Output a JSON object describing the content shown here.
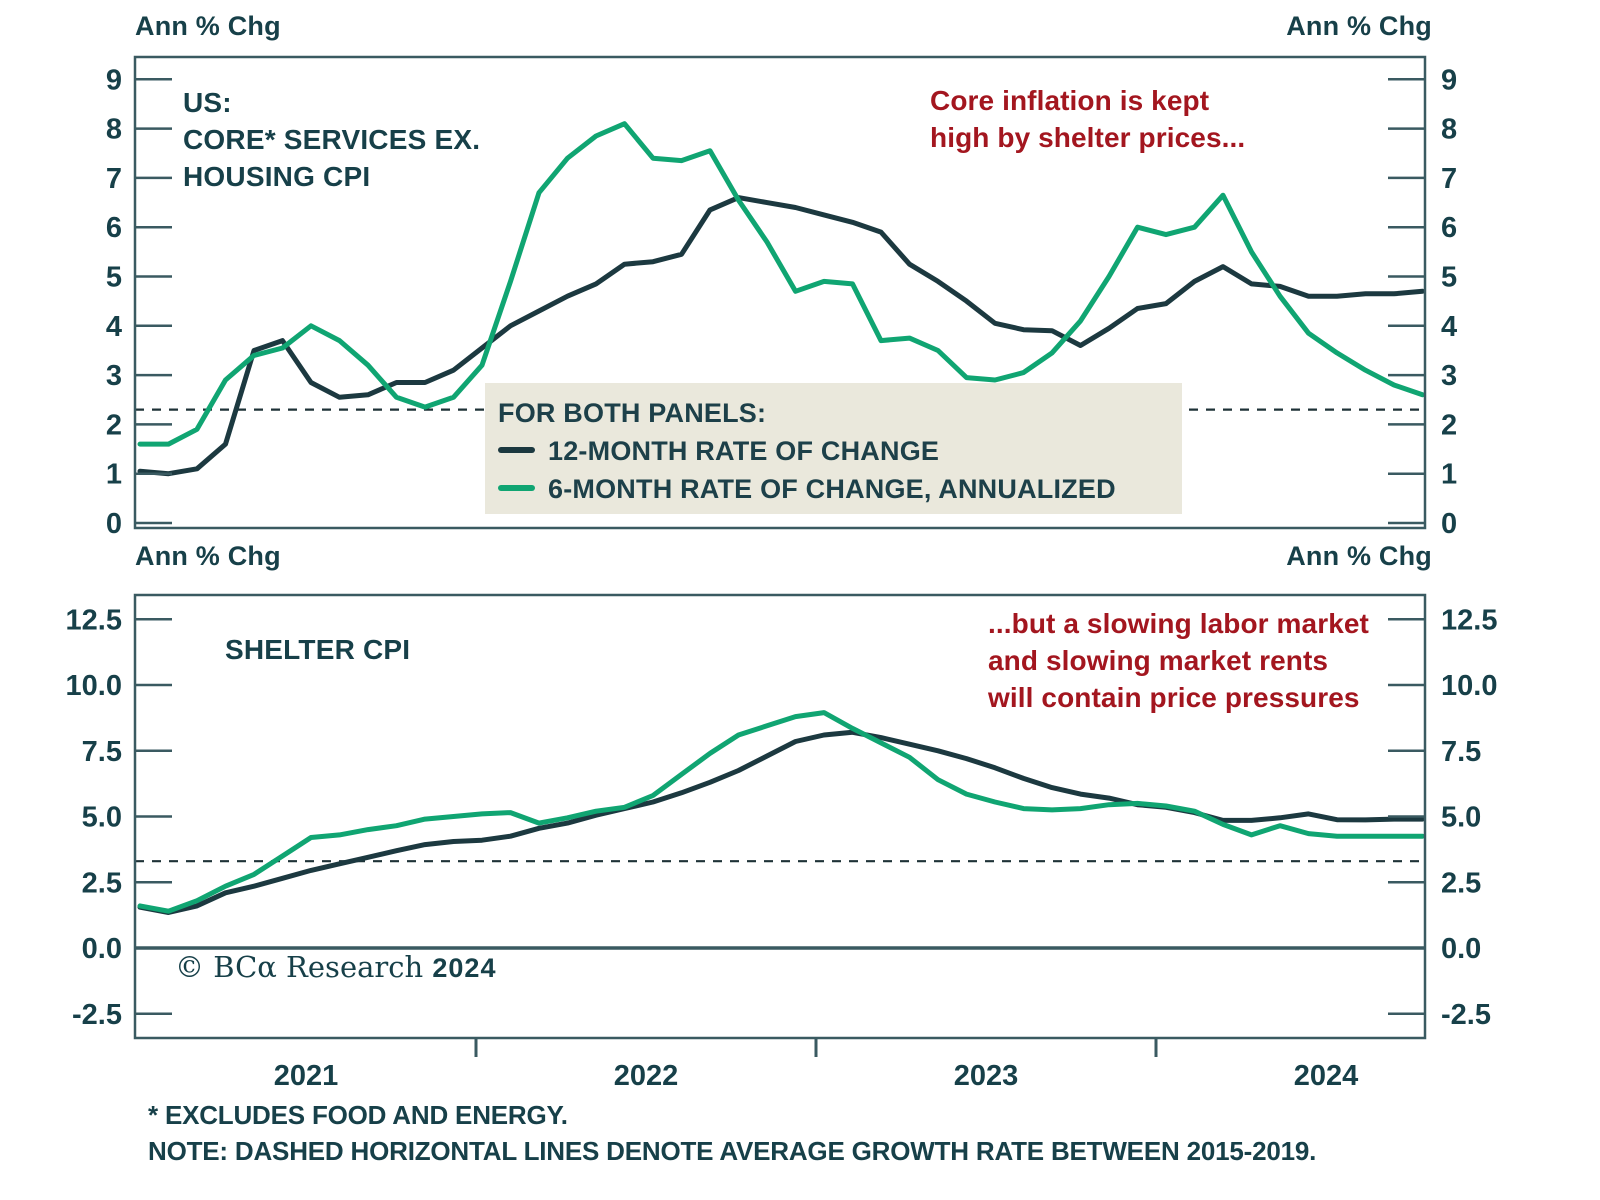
{
  "colors": {
    "text": "#174049",
    "red_annotation": "#a3161f",
    "line_12m": "#1c3940",
    "line_6m": "#10a572",
    "axis": "#3a5a61",
    "dashed": "#1e3237",
    "legend_bg": "#eae8dc",
    "background": "#ffffff"
  },
  "axis_corner_labels": {
    "top_left": "Ann % Chg",
    "top_right": "Ann % Chg",
    "mid_left": "Ann % Chg",
    "mid_right": "Ann % Chg"
  },
  "panels": [
    {
      "title_lines": [
        "US:",
        "CORE* SERVICES EX.",
        "HOUSING CPI"
      ],
      "annotation_lines": [
        "Core inflation is kept",
        "high by shelter prices..."
      ]
    },
    {
      "title_lines": [
        "SHELTER CPI"
      ],
      "annotation_lines": [
        "...but a slowing labor market",
        "and slowing market rents",
        "will contain price pressures"
      ]
    }
  ],
  "legend": {
    "title": "FOR BOTH PANELS:",
    "items": [
      {
        "label": "12-MONTH RATE OF CHANGE"
      },
      {
        "label": "6-MONTH RATE OF CHANGE, ANNUALIZED"
      }
    ]
  },
  "copyright": {
    "symbol_text": "© BCα Research",
    "year": "2024"
  },
  "x_axis": {
    "year_labels": [
      "2021",
      "2022",
      "2023",
      "2024"
    ]
  },
  "footnotes": [
    "* EXCLUDES FOOD AND ENERGY.",
    "NOTE: DASHED HORIZONTAL LINES DENOTE AVERAGE GROWTH RATE BETWEEN 2015-2019."
  ],
  "chart_data": [
    {
      "type": "line",
      "title": "US: CORE* SERVICES EX. HOUSING CPI",
      "ylabel": "Ann % Chg",
      "ylim": [
        0,
        9.45
      ],
      "ytick_values": [
        0,
        1,
        2,
        3,
        4,
        5,
        6,
        7,
        8,
        9
      ],
      "ytick_labels": [
        "0",
        "1",
        "2",
        "3",
        "4",
        "5",
        "6",
        "7",
        "8",
        "9"
      ],
      "x_range": "monthly, Jan 2021 - Oct 2024",
      "x_year_labels": [
        "2021",
        "2022",
        "2023",
        "2024"
      ],
      "grid": false,
      "zero_line": false,
      "dashed_avg_2015_2019": 2.3,
      "annotation": "Core inflation is kept high by shelter prices...",
      "series": [
        {
          "name": "12-MONTH RATE OF CHANGE",
          "color": "#1c3940",
          "values": [
            1.05,
            1.0,
            1.1,
            1.6,
            3.5,
            3.7,
            2.85,
            2.55,
            2.6,
            2.85,
            2.85,
            3.1,
            3.55,
            4.0,
            4.3,
            4.6,
            4.85,
            5.25,
            5.3,
            5.45,
            6.35,
            6.6,
            6.5,
            6.4,
            6.25,
            6.1,
            5.9,
            5.25,
            4.9,
            4.5,
            4.05,
            3.92,
            3.9,
            3.6,
            3.95,
            4.35,
            4.45,
            4.9,
            5.2,
            4.85,
            4.8,
            4.6,
            4.6,
            4.65,
            4.65,
            4.7
          ]
        },
        {
          "name": "6-MONTH RATE OF CHANGE, ANNUALIZED",
          "color": "#10a572",
          "values": [
            1.6,
            1.6,
            1.9,
            2.9,
            3.4,
            3.55,
            4.0,
            3.7,
            3.2,
            2.55,
            2.35,
            2.55,
            3.2,
            4.9,
            6.7,
            7.4,
            7.85,
            8.1,
            7.4,
            7.35,
            7.55,
            6.55,
            5.7,
            4.7,
            4.9,
            4.85,
            3.7,
            3.75,
            3.5,
            2.95,
            2.9,
            3.05,
            3.45,
            4.1,
            5.0,
            6.0,
            5.85,
            6.0,
            6.65,
            5.5,
            4.6,
            3.85,
            3.45,
            3.1,
            2.8,
            2.6
          ]
        }
      ]
    },
    {
      "type": "line",
      "title": "SHELTER CPI",
      "ylabel": "Ann % Chg",
      "ylim": [
        -2.5,
        12.5
      ],
      "ytick_values": [
        -2.5,
        0,
        2.5,
        5,
        7.5,
        10,
        12.5
      ],
      "ytick_labels": [
        "-2.5",
        "0.0",
        "2.5",
        "5.0",
        "7.5",
        "10.0",
        "12.5"
      ],
      "x_range": "monthly, Jan 2021 - Oct 2024",
      "x_year_labels": [
        "2021",
        "2022",
        "2023",
        "2024"
      ],
      "grid": false,
      "zero_line": true,
      "dashed_avg_2015_2019": 3.3,
      "annotation": "...but a slowing labor market and slowing market rents will contain price pressures",
      "series": [
        {
          "name": "12-MONTH RATE OF CHANGE",
          "color": "#1c3940",
          "values": [
            1.55,
            1.35,
            1.6,
            2.1,
            2.35,
            2.65,
            2.95,
            3.2,
            3.45,
            3.7,
            3.93,
            4.05,
            4.1,
            4.25,
            4.55,
            4.75,
            5.05,
            5.3,
            5.55,
            5.9,
            6.3,
            6.75,
            7.3,
            7.85,
            8.1,
            8.2,
            8.0,
            7.75,
            7.5,
            7.2,
            6.85,
            6.45,
            6.1,
            5.85,
            5.7,
            5.45,
            5.35,
            5.15,
            4.85,
            4.85,
            4.95,
            5.1,
            4.88,
            4.87,
            4.9,
            4.9
          ]
        },
        {
          "name": "6-MONTH RATE OF CHANGE, ANNUALIZED",
          "color": "#10a572",
          "values": [
            1.6,
            1.4,
            1.8,
            2.35,
            2.8,
            3.5,
            4.2,
            4.3,
            4.5,
            4.65,
            4.9,
            5.0,
            5.1,
            5.15,
            4.75,
            4.95,
            5.2,
            5.35,
            5.8,
            6.6,
            7.4,
            8.1,
            8.45,
            8.8,
            8.95,
            8.35,
            7.8,
            7.25,
            6.4,
            5.85,
            5.55,
            5.3,
            5.25,
            5.3,
            5.45,
            5.5,
            5.4,
            5.2,
            4.7,
            4.3,
            4.65,
            4.35,
            4.25,
            4.25,
            4.25,
            4.25
          ]
        }
      ]
    }
  ]
}
